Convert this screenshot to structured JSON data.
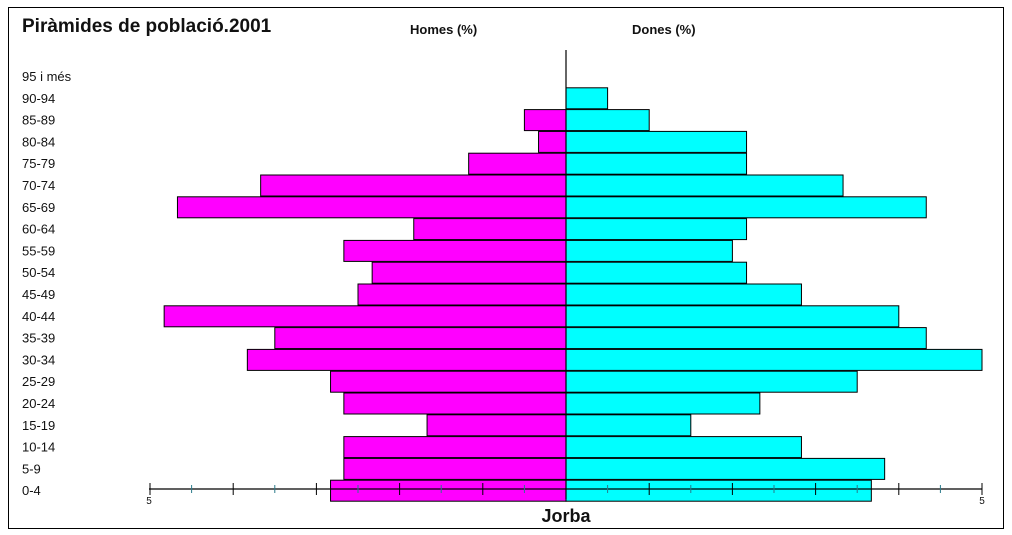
{
  "chart_data": {
    "type": "bar",
    "title": "Piràmides de població.2001",
    "left_header": "Homes (%)",
    "right_header": "Dones (%)",
    "xlabel": "Jorba",
    "categories": [
      "95 i més",
      "90-94",
      "85-89",
      "80-84",
      "75-79",
      "70-74",
      "65-69",
      "60-64",
      "55-59",
      "50-54",
      "45-49",
      "40-44",
      "35-39",
      "30-34",
      "25-29",
      "20-24",
      "15-19",
      "10-14",
      "5-9",
      "0-4"
    ],
    "series": [
      {
        "name": "Homes (%)",
        "color": "#ff00ff",
        "values": [
          0,
          0,
          0.5,
          0.33,
          1.17,
          3.67,
          4.67,
          1.83,
          2.67,
          2.33,
          2.5,
          4.83,
          3.5,
          3.83,
          2.83,
          2.67,
          1.67,
          2.67,
          2.67,
          2.83
        ]
      },
      {
        "name": "Dones (%)",
        "color": "#00ffff",
        "values": [
          0,
          0.5,
          1.0,
          2.17,
          2.17,
          3.33,
          4.33,
          2.17,
          2.0,
          2.17,
          2.83,
          4.0,
          4.33,
          5.0,
          3.5,
          2.33,
          1.5,
          2.83,
          3.83,
          3.67
        ]
      }
    ],
    "xlim": [
      -5,
      5
    ],
    "tick_labels": [
      "5",
      "5"
    ],
    "grid": false,
    "legend": "none"
  }
}
